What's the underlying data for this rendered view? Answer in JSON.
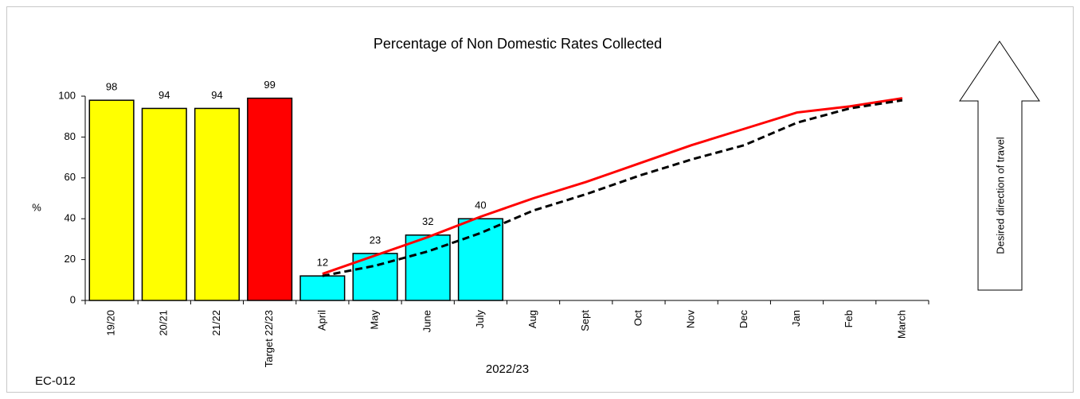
{
  "chart_data": {
    "type": "bar",
    "title": "Percentage of Non Domestic Rates Collected",
    "y_label": "%",
    "x_label": "2022/23",
    "code": "EC-012",
    "arrow_label": "Desired direction of travel",
    "categories": [
      "19/20",
      "20/21",
      "21/22",
      "Target 22/23",
      "April",
      "May",
      "June",
      "July",
      "Aug",
      "Sept",
      "Oct",
      "Nov",
      "Dec",
      "Jan",
      "Feb",
      "March"
    ],
    "values": [
      98,
      94,
      94,
      99,
      12,
      23,
      32,
      40,
      null,
      null,
      null,
      null,
      null,
      null,
      null,
      null
    ],
    "colors": [
      "#ffff00",
      "#ffff00",
      "#ffff00",
      "#ff0000",
      "#00ffff",
      "#00ffff",
      "#00ffff",
      "#00ffff",
      null,
      null,
      null,
      null,
      null,
      null,
      null,
      null
    ],
    "series": [
      {
        "type": "line",
        "color": "#ff0000",
        "dashed": false,
        "values": [
          null,
          null,
          null,
          null,
          13,
          22,
          31,
          41,
          50,
          58,
          67,
          76,
          84,
          92,
          95,
          99
        ]
      },
      {
        "type": "line",
        "color": "#000000",
        "dashed": true,
        "values": [
          null,
          null,
          null,
          null,
          12,
          17,
          24,
          33,
          44,
          52,
          61,
          69,
          76,
          87,
          94,
          98
        ]
      }
    ],
    "ylim": [
      0,
      100
    ],
    "yticks": [
      0,
      20,
      40,
      60,
      80,
      100
    ]
  }
}
